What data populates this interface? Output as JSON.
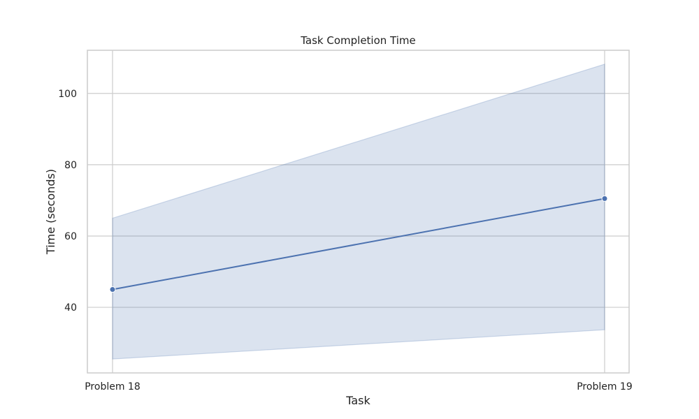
{
  "chart_data": {
    "type": "line",
    "title": "Task Completion Time",
    "xlabel": "Task",
    "ylabel": "Time (seconds)",
    "categories": [
      "Problem 18",
      "Problem 19"
    ],
    "series": [
      {
        "values": [
          45,
          70.5
        ],
        "ci_lower": [
          25.5,
          33.7
        ],
        "ci_upper": [
          65,
          108.2
        ]
      }
    ],
    "ylim": [
      21.6,
      112.1
    ],
    "yticks": [
      40,
      60,
      80,
      100
    ],
    "grid": true,
    "colors": {
      "line": "#4c72b0",
      "band": "#4c72b0",
      "grid": "#cccccc",
      "frame": "#cccccc",
      "text": "#222222"
    }
  }
}
